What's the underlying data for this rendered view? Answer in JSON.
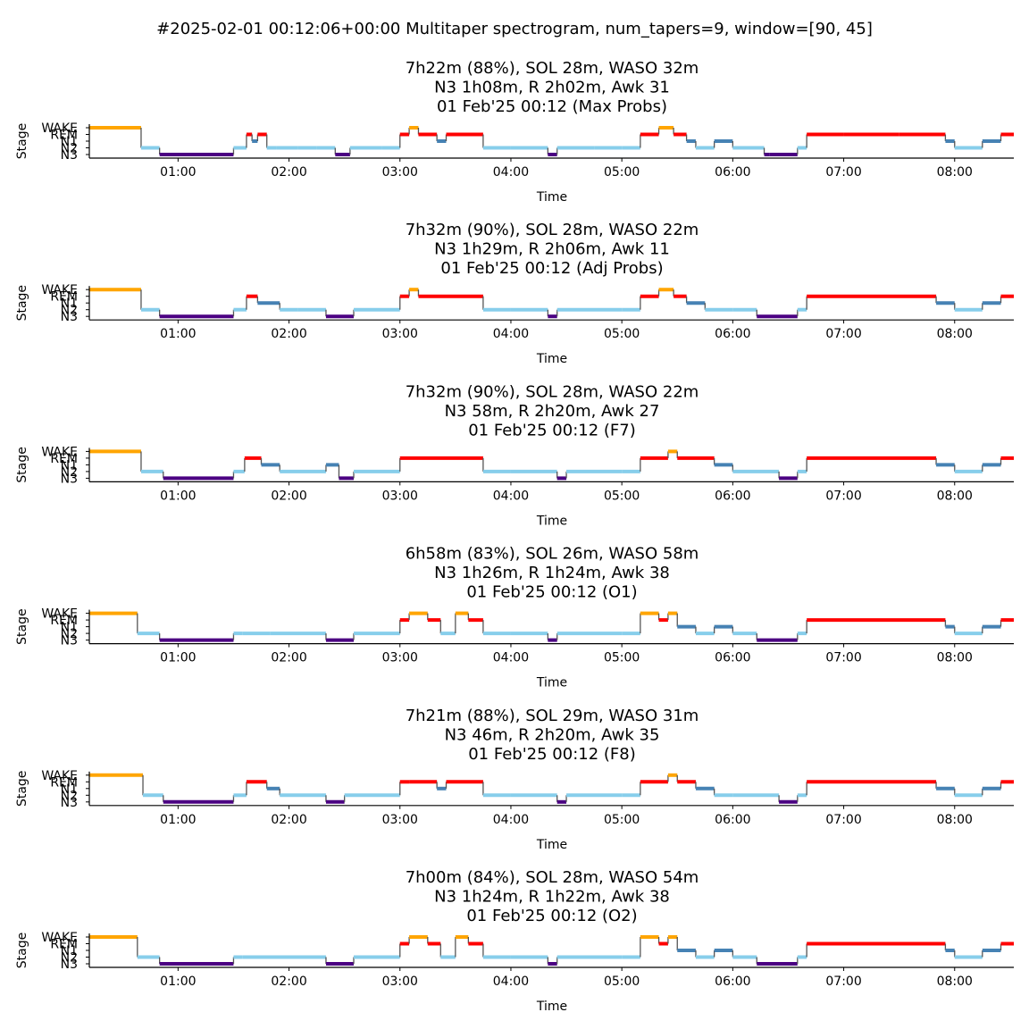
{
  "figure": {
    "suptitle": "#2025-02-01 00:12:06+00:00 Multitaper spectrogram, num_tapers=9, window=[90, 45]"
  },
  "colors": {
    "WAKE": "#ffa500",
    "REM": "#ff0000",
    "N1": "#4682b4",
    "N2": "#87ceeb",
    "N3": "#4b0082",
    "transition": "#555555"
  },
  "chart_data": [
    {
      "type": "line",
      "title_lines": [
        "7h22m (88%), SOL 28m, WASO 32m",
        "N3 1h08m, R 2h02m, Awk 31",
        "01 Feb'25 00:12 (Max Probs)"
      ],
      "xlabel": "Time",
      "ylabel": "Stage",
      "y_categories": [
        "N3",
        "N2",
        "N1",
        "REM",
        "WAKE"
      ],
      "x_ticks": [
        "01:00",
        "02:00",
        "03:00",
        "04:00",
        "05:00",
        "06:00",
        "07:00",
        "08:00"
      ],
      "xlim": [
        "00:12",
        "08:32"
      ],
      "segments": [
        [
          "00:12",
          "00:40",
          "WAKE"
        ],
        [
          "00:40",
          "00:50",
          "N2"
        ],
        [
          "00:50",
          "01:30",
          "N3"
        ],
        [
          "01:30",
          "01:37",
          "N2"
        ],
        [
          "01:37",
          "01:40",
          "REM"
        ],
        [
          "01:40",
          "01:43",
          "N1"
        ],
        [
          "01:43",
          "01:48",
          "REM"
        ],
        [
          "01:48",
          "01:53",
          "N2"
        ],
        [
          "01:53",
          "02:05",
          "N2"
        ],
        [
          "02:05",
          "02:15",
          "N2"
        ],
        [
          "02:15",
          "02:25",
          "N2"
        ],
        [
          "02:25",
          "02:33",
          "N3"
        ],
        [
          "02:33",
          "02:50",
          "N2"
        ],
        [
          "02:50",
          "03:00",
          "N2"
        ],
        [
          "03:00",
          "03:05",
          "REM"
        ],
        [
          "03:05",
          "03:10",
          "WAKE"
        ],
        [
          "03:10",
          "03:20",
          "REM"
        ],
        [
          "03:20",
          "03:25",
          "N1"
        ],
        [
          "03:25",
          "03:45",
          "REM"
        ],
        [
          "03:45",
          "04:00",
          "N2"
        ],
        [
          "04:00",
          "04:20",
          "N2"
        ],
        [
          "04:20",
          "04:25",
          "N3"
        ],
        [
          "04:25",
          "04:45",
          "N2"
        ],
        [
          "04:45",
          "05:00",
          "N2"
        ],
        [
          "05:00",
          "05:10",
          "N2"
        ],
        [
          "05:10",
          "05:20",
          "REM"
        ],
        [
          "05:20",
          "05:28",
          "WAKE"
        ],
        [
          "05:28",
          "05:35",
          "REM"
        ],
        [
          "05:35",
          "05:40",
          "N1"
        ],
        [
          "05:40",
          "05:50",
          "N2"
        ],
        [
          "05:50",
          "06:00",
          "N1"
        ],
        [
          "06:00",
          "06:17",
          "N2"
        ],
        [
          "06:17",
          "06:20",
          "N3"
        ],
        [
          "06:20",
          "06:35",
          "N3"
        ],
        [
          "06:35",
          "06:40",
          "N2"
        ],
        [
          "06:40",
          "07:00",
          "REM"
        ],
        [
          "07:00",
          "07:30",
          "REM"
        ],
        [
          "07:30",
          "07:55",
          "REM"
        ],
        [
          "07:55",
          "08:00",
          "N1"
        ],
        [
          "08:00",
          "08:15",
          "N2"
        ],
        [
          "08:15",
          "08:25",
          "N1"
        ],
        [
          "08:25",
          "08:32",
          "REM"
        ]
      ]
    },
    {
      "type": "line",
      "title_lines": [
        "7h32m (90%), SOL 28m, WASO 22m",
        "N3 1h29m, R 2h06m, Awk 11",
        "01 Feb'25 00:12 (Adj Probs)"
      ],
      "xlabel": "Time",
      "ylabel": "Stage",
      "y_categories": [
        "N3",
        "N2",
        "N1",
        "REM",
        "WAKE"
      ],
      "x_ticks": [
        "01:00",
        "02:00",
        "03:00",
        "04:00",
        "05:00",
        "06:00",
        "07:00",
        "08:00"
      ],
      "xlim": [
        "00:12",
        "08:32"
      ],
      "segments": [
        [
          "00:12",
          "00:40",
          "WAKE"
        ],
        [
          "00:40",
          "00:50",
          "N2"
        ],
        [
          "00:50",
          "01:30",
          "N3"
        ],
        [
          "01:30",
          "01:37",
          "N2"
        ],
        [
          "01:37",
          "01:43",
          "REM"
        ],
        [
          "01:43",
          "01:55",
          "N1"
        ],
        [
          "01:55",
          "02:05",
          "N2"
        ],
        [
          "02:05",
          "02:20",
          "N2"
        ],
        [
          "02:20",
          "02:35",
          "N3"
        ],
        [
          "02:35",
          "03:00",
          "N2"
        ],
        [
          "03:00",
          "03:05",
          "REM"
        ],
        [
          "03:05",
          "03:10",
          "WAKE"
        ],
        [
          "03:10",
          "03:25",
          "REM"
        ],
        [
          "03:25",
          "03:45",
          "REM"
        ],
        [
          "03:45",
          "04:00",
          "N2"
        ],
        [
          "04:00",
          "04:20",
          "N2"
        ],
        [
          "04:20",
          "04:25",
          "N3"
        ],
        [
          "04:25",
          "05:00",
          "N2"
        ],
        [
          "05:00",
          "05:10",
          "N2"
        ],
        [
          "05:10",
          "05:20",
          "REM"
        ],
        [
          "05:20",
          "05:28",
          "WAKE"
        ],
        [
          "05:28",
          "05:35",
          "REM"
        ],
        [
          "05:35",
          "05:45",
          "N1"
        ],
        [
          "05:45",
          "06:00",
          "N2"
        ],
        [
          "06:00",
          "06:13",
          "N2"
        ],
        [
          "06:13",
          "06:35",
          "N3"
        ],
        [
          "06:35",
          "06:40",
          "N2"
        ],
        [
          "06:40",
          "07:50",
          "REM"
        ],
        [
          "07:50",
          "08:00",
          "N1"
        ],
        [
          "08:00",
          "08:15",
          "N2"
        ],
        [
          "08:15",
          "08:25",
          "N1"
        ],
        [
          "08:25",
          "08:32",
          "REM"
        ]
      ]
    },
    {
      "type": "line",
      "title_lines": [
        "7h32m (90%), SOL 28m, WASO 22m",
        "N3 58m, R 2h20m, Awk 27",
        "01 Feb'25 00:12 (F7)"
      ],
      "xlabel": "Time",
      "ylabel": "Stage",
      "y_categories": [
        "N3",
        "N2",
        "N1",
        "REM",
        "WAKE"
      ],
      "x_ticks": [
        "01:00",
        "02:00",
        "03:00",
        "04:00",
        "05:00",
        "06:00",
        "07:00",
        "08:00"
      ],
      "xlim": [
        "00:12",
        "08:32"
      ],
      "segments": [
        [
          "00:12",
          "00:40",
          "WAKE"
        ],
        [
          "00:40",
          "00:52",
          "N2"
        ],
        [
          "00:52",
          "01:30",
          "N3"
        ],
        [
          "01:30",
          "01:36",
          "N2"
        ],
        [
          "01:36",
          "01:45",
          "REM"
        ],
        [
          "01:45",
          "01:55",
          "N1"
        ],
        [
          "01:55",
          "02:20",
          "N2"
        ],
        [
          "02:20",
          "02:27",
          "N1"
        ],
        [
          "02:27",
          "02:35",
          "N3"
        ],
        [
          "02:35",
          "03:00",
          "N2"
        ],
        [
          "03:00",
          "03:45",
          "REM"
        ],
        [
          "03:45",
          "04:00",
          "N2"
        ],
        [
          "04:00",
          "04:25",
          "N2"
        ],
        [
          "04:25",
          "04:30",
          "N3"
        ],
        [
          "04:30",
          "05:00",
          "N2"
        ],
        [
          "05:00",
          "05:10",
          "N2"
        ],
        [
          "05:10",
          "05:25",
          "REM"
        ],
        [
          "05:25",
          "05:30",
          "WAKE"
        ],
        [
          "05:30",
          "05:50",
          "REM"
        ],
        [
          "05:50",
          "06:00",
          "N1"
        ],
        [
          "06:00",
          "06:25",
          "N2"
        ],
        [
          "06:25",
          "06:35",
          "N3"
        ],
        [
          "06:35",
          "06:40",
          "N2"
        ],
        [
          "06:40",
          "07:50",
          "REM"
        ],
        [
          "07:50",
          "08:00",
          "N1"
        ],
        [
          "08:00",
          "08:15",
          "N2"
        ],
        [
          "08:15",
          "08:25",
          "N1"
        ],
        [
          "08:25",
          "08:32",
          "REM"
        ]
      ]
    },
    {
      "type": "line",
      "title_lines": [
        "6h58m (83%), SOL 26m, WASO 58m",
        "N3 1h26m, R 1h24m, Awk 38",
        "01 Feb'25 00:12 (O1)"
      ],
      "xlabel": "Time",
      "ylabel": "Stage",
      "y_categories": [
        "N3",
        "N2",
        "N1",
        "REM",
        "WAKE"
      ],
      "x_ticks": [
        "01:00",
        "02:00",
        "03:00",
        "04:00",
        "05:00",
        "06:00",
        "07:00",
        "08:00"
      ],
      "xlim": [
        "00:12",
        "08:32"
      ],
      "segments": [
        [
          "00:12",
          "00:38",
          "WAKE"
        ],
        [
          "00:38",
          "00:50",
          "N2"
        ],
        [
          "00:50",
          "01:30",
          "N3"
        ],
        [
          "01:30",
          "01:35",
          "N2"
        ],
        [
          "01:35",
          "01:50",
          "N2"
        ],
        [
          "01:50",
          "02:20",
          "N2"
        ],
        [
          "02:20",
          "02:35",
          "N3"
        ],
        [
          "02:35",
          "03:00",
          "N2"
        ],
        [
          "03:00",
          "03:05",
          "REM"
        ],
        [
          "03:05",
          "03:15",
          "WAKE"
        ],
        [
          "03:15",
          "03:22",
          "REM"
        ],
        [
          "03:22",
          "03:30",
          "N2"
        ],
        [
          "03:30",
          "03:37",
          "WAKE"
        ],
        [
          "03:37",
          "03:45",
          "REM"
        ],
        [
          "03:45",
          "04:00",
          "N2"
        ],
        [
          "04:00",
          "04:20",
          "N2"
        ],
        [
          "04:20",
          "04:25",
          "N3"
        ],
        [
          "04:25",
          "05:00",
          "N2"
        ],
        [
          "05:00",
          "05:10",
          "N2"
        ],
        [
          "05:10",
          "05:20",
          "WAKE"
        ],
        [
          "05:20",
          "05:25",
          "REM"
        ],
        [
          "05:25",
          "05:30",
          "WAKE"
        ],
        [
          "05:30",
          "05:40",
          "N1"
        ],
        [
          "05:40",
          "05:50",
          "N2"
        ],
        [
          "05:50",
          "06:00",
          "N1"
        ],
        [
          "06:00",
          "06:13",
          "N2"
        ],
        [
          "06:13",
          "06:35",
          "N3"
        ],
        [
          "06:35",
          "06:40",
          "N2"
        ],
        [
          "06:40",
          "07:55",
          "REM"
        ],
        [
          "07:55",
          "08:00",
          "N1"
        ],
        [
          "08:00",
          "08:15",
          "N2"
        ],
        [
          "08:15",
          "08:25",
          "N1"
        ],
        [
          "08:25",
          "08:32",
          "REM"
        ]
      ]
    },
    {
      "type": "line",
      "title_lines": [
        "7h21m (88%), SOL 29m, WASO 31m",
        "N3 46m, R 2h20m, Awk 35",
        "01 Feb'25 00:12 (F8)"
      ],
      "xlabel": "Time",
      "ylabel": "Stage",
      "y_categories": [
        "N3",
        "N2",
        "N1",
        "REM",
        "WAKE"
      ],
      "x_ticks": [
        "01:00",
        "02:00",
        "03:00",
        "04:00",
        "05:00",
        "06:00",
        "07:00",
        "08:00"
      ],
      "xlim": [
        "00:12",
        "08:32"
      ],
      "segments": [
        [
          "00:12",
          "00:41",
          "WAKE"
        ],
        [
          "00:41",
          "00:52",
          "N2"
        ],
        [
          "00:52",
          "01:30",
          "N3"
        ],
        [
          "01:30",
          "01:37",
          "N2"
        ],
        [
          "01:37",
          "01:48",
          "REM"
        ],
        [
          "01:48",
          "01:55",
          "N1"
        ],
        [
          "01:55",
          "02:20",
          "N2"
        ],
        [
          "02:20",
          "02:30",
          "N3"
        ],
        [
          "02:30",
          "03:00",
          "N2"
        ],
        [
          "03:00",
          "03:05",
          "REM"
        ],
        [
          "03:05",
          "03:20",
          "REM"
        ],
        [
          "03:20",
          "03:25",
          "N1"
        ],
        [
          "03:25",
          "03:45",
          "REM"
        ],
        [
          "03:45",
          "04:00",
          "N2"
        ],
        [
          "04:00",
          "04:25",
          "N2"
        ],
        [
          "04:25",
          "04:30",
          "N3"
        ],
        [
          "04:30",
          "05:00",
          "N2"
        ],
        [
          "05:00",
          "05:10",
          "N2"
        ],
        [
          "05:10",
          "05:25",
          "REM"
        ],
        [
          "05:25",
          "05:30",
          "WAKE"
        ],
        [
          "05:30",
          "05:40",
          "REM"
        ],
        [
          "05:40",
          "05:50",
          "N1"
        ],
        [
          "05:50",
          "06:00",
          "N2"
        ],
        [
          "06:00",
          "06:25",
          "N2"
        ],
        [
          "06:25",
          "06:35",
          "N3"
        ],
        [
          "06:35",
          "06:40",
          "N2"
        ],
        [
          "06:40",
          "07:50",
          "REM"
        ],
        [
          "07:50",
          "08:00",
          "N1"
        ],
        [
          "08:00",
          "08:15",
          "N2"
        ],
        [
          "08:15",
          "08:25",
          "N1"
        ],
        [
          "08:25",
          "08:32",
          "REM"
        ]
      ]
    },
    {
      "type": "line",
      "title_lines": [
        "7h00m (84%), SOL 28m, WASO 54m",
        "N3 1h24m, R 1h22m, Awk 38",
        "01 Feb'25 00:12 (O2)"
      ],
      "xlabel": "Time",
      "ylabel": "Stage",
      "y_categories": [
        "N3",
        "N2",
        "N1",
        "REM",
        "WAKE"
      ],
      "x_ticks": [
        "01:00",
        "02:00",
        "03:00",
        "04:00",
        "05:00",
        "06:00",
        "07:00",
        "08:00"
      ],
      "xlim": [
        "00:12",
        "08:32"
      ],
      "segments": [
        [
          "00:12",
          "00:38",
          "WAKE"
        ],
        [
          "00:38",
          "00:50",
          "N2"
        ],
        [
          "00:50",
          "01:30",
          "N3"
        ],
        [
          "01:30",
          "01:35",
          "N2"
        ],
        [
          "01:35",
          "02:20",
          "N2"
        ],
        [
          "02:20",
          "02:35",
          "N3"
        ],
        [
          "02:35",
          "03:00",
          "N2"
        ],
        [
          "03:00",
          "03:05",
          "REM"
        ],
        [
          "03:05",
          "03:15",
          "WAKE"
        ],
        [
          "03:15",
          "03:22",
          "REM"
        ],
        [
          "03:22",
          "03:30",
          "N2"
        ],
        [
          "03:30",
          "03:37",
          "WAKE"
        ],
        [
          "03:37",
          "03:45",
          "REM"
        ],
        [
          "03:45",
          "04:00",
          "N2"
        ],
        [
          "04:00",
          "04:20",
          "N2"
        ],
        [
          "04:20",
          "04:25",
          "N3"
        ],
        [
          "04:25",
          "05:00",
          "N2"
        ],
        [
          "05:00",
          "05:10",
          "N2"
        ],
        [
          "05:10",
          "05:20",
          "WAKE"
        ],
        [
          "05:20",
          "05:25",
          "REM"
        ],
        [
          "05:25",
          "05:30",
          "WAKE"
        ],
        [
          "05:30",
          "05:40",
          "N1"
        ],
        [
          "05:40",
          "05:50",
          "N2"
        ],
        [
          "05:50",
          "06:00",
          "N1"
        ],
        [
          "06:00",
          "06:13",
          "N2"
        ],
        [
          "06:13",
          "06:35",
          "N3"
        ],
        [
          "06:35",
          "06:40",
          "N2"
        ],
        [
          "06:40",
          "07:55",
          "REM"
        ],
        [
          "07:55",
          "08:00",
          "N1"
        ],
        [
          "08:00",
          "08:15",
          "N2"
        ],
        [
          "08:15",
          "08:25",
          "N1"
        ],
        [
          "08:25",
          "08:32",
          "REM"
        ]
      ]
    }
  ]
}
